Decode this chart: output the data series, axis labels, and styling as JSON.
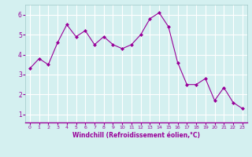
{
  "x": [
    0,
    1,
    2,
    3,
    4,
    5,
    6,
    7,
    8,
    9,
    10,
    11,
    12,
    13,
    14,
    15,
    16,
    17,
    18,
    19,
    20,
    21,
    22,
    23
  ],
  "y": [
    3.3,
    3.8,
    3.5,
    4.6,
    5.5,
    4.9,
    5.2,
    4.5,
    4.9,
    4.5,
    4.3,
    4.5,
    5.0,
    5.8,
    6.1,
    5.4,
    3.6,
    2.5,
    2.5,
    2.8,
    1.7,
    2.35,
    1.6,
    1.3
  ],
  "line_color": "#990099",
  "marker": "D",
  "marker_size": 2.0,
  "bg_color": "#d4f0f0",
  "grid_color": "#b0d8d8",
  "xlabel": "Windchill (Refroidissement éolien,°C)",
  "xlabel_color": "#990099",
  "tick_color": "#990099",
  "label_color": "#990099",
  "ylim": [
    0.6,
    6.5
  ],
  "xlim": [
    -0.5,
    23.5
  ],
  "yticks": [
    1,
    2,
    3,
    4,
    5,
    6
  ],
  "xticks": [
    0,
    1,
    2,
    3,
    4,
    5,
    6,
    7,
    8,
    9,
    10,
    11,
    12,
    13,
    14,
    15,
    16,
    17,
    18,
    19,
    20,
    21,
    22,
    23
  ]
}
